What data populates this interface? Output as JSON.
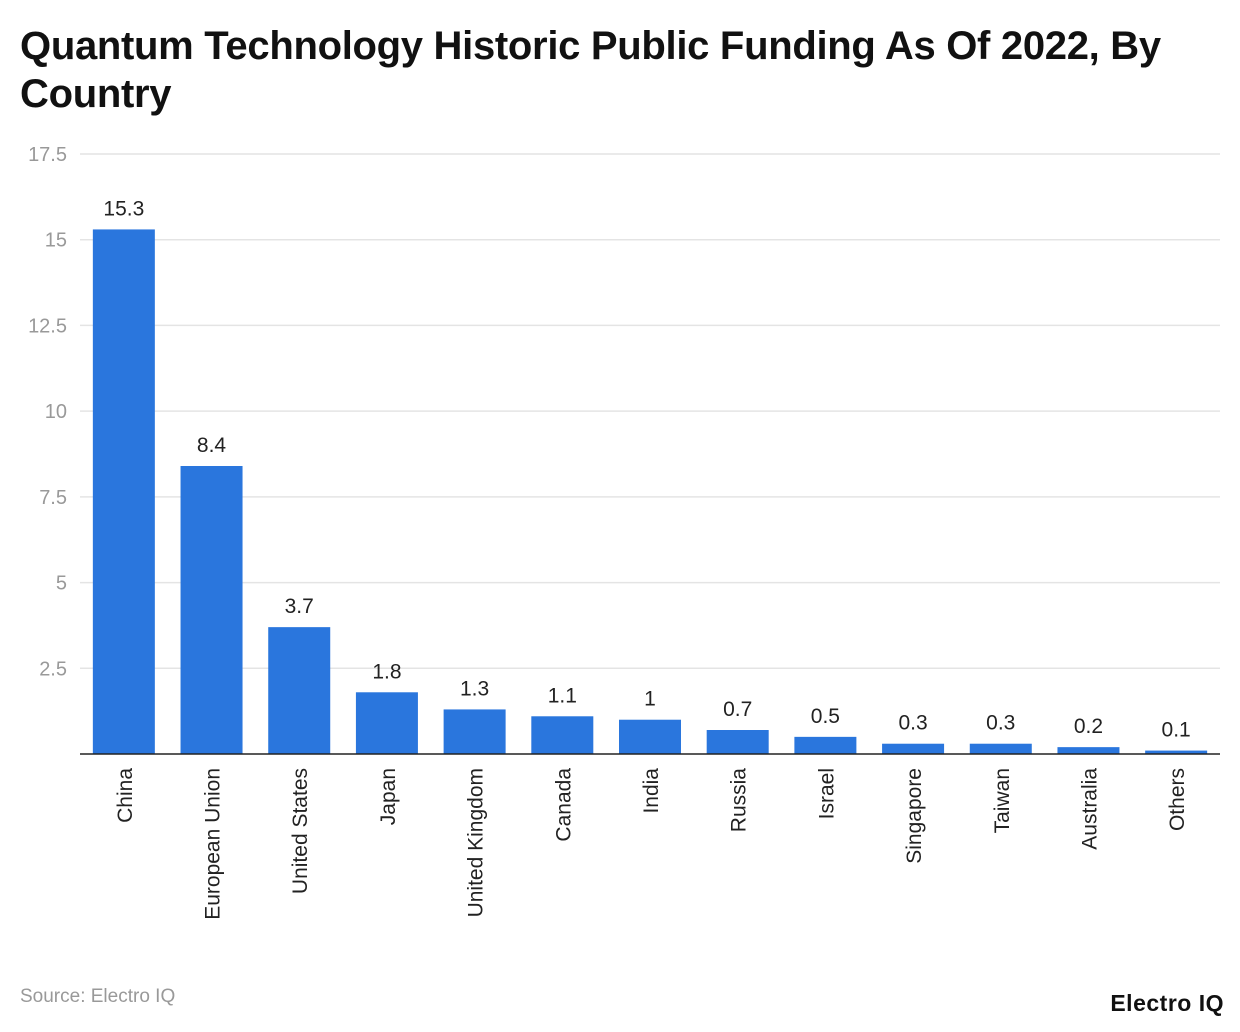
{
  "chart_data": {
    "type": "bar",
    "title": "Quantum Technology Historic Public Funding As Of 2022, By Country",
    "xlabel": "",
    "ylabel": "",
    "categories": [
      "China",
      "European Union",
      "United States",
      "Japan",
      "United Kingdom",
      "Canada",
      "India",
      "Russia",
      "Israel",
      "Singapore",
      "Taiwan",
      "Australia",
      "Others"
    ],
    "values": [
      15.3,
      8.4,
      3.7,
      1.8,
      1.3,
      1.1,
      1,
      0.7,
      0.5,
      0.3,
      0.3,
      0.2,
      0.1
    ],
    "ylim": [
      0,
      17.5
    ],
    "yticks": [
      "17.5",
      "15",
      "12.5",
      "10",
      "7.5",
      "5",
      "2.5"
    ],
    "grid": true,
    "legend": "none",
    "colors": {
      "bar": "#2a76dd",
      "grid": "#e4e4e4",
      "tick": "#999999",
      "axis": "#222222"
    }
  },
  "footer": {
    "source": "Source: Electro IQ",
    "logo": "Electro IQ"
  }
}
